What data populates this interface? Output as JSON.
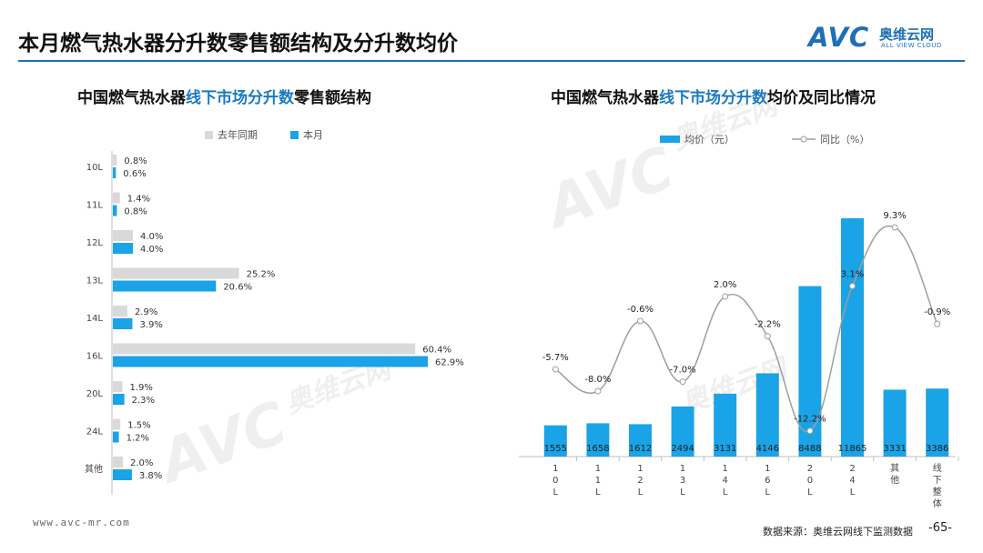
{
  "header": {
    "title": "本月燃气热水器分升数零售额结构及分升数均价",
    "logo_mark": "AVC",
    "logo_cn": "奥维云网",
    "logo_en": "ALL VIEW CLOUD"
  },
  "colors": {
    "accent": "#1f6fb5",
    "bar_current": "#1aa3e6",
    "bar_last": "#d9d9d9",
    "line": "#9e9e9e"
  },
  "watermark": {
    "mark": "AVC",
    "cn": "奥维云网",
    "en": "ALL VIEW CLOUD"
  },
  "left_chart_title": {
    "prefix": "中国燃气热水器",
    "highlight": "线下市场分升数",
    "suffix": "零售额结构"
  },
  "right_chart_title": {
    "prefix": "中国燃气热水器",
    "highlight": "线下市场分升数",
    "suffix": "均价及同比情况"
  },
  "chart_data": [
    {
      "type": "bar",
      "orientation": "horizontal",
      "categories": [
        "10L",
        "11L",
        "12L",
        "13L",
        "14L",
        "16L",
        "20L",
        "24L",
        "其他"
      ],
      "series": [
        {
          "name": "去年同期",
          "values": [
            0.8,
            1.4,
            4.0,
            25.2,
            2.9,
            60.4,
            1.9,
            1.5,
            2.0
          ],
          "labels": [
            "0.8%",
            "1.4%",
            "4.0%",
            "25.2%",
            "2.9%",
            "60.4%",
            "1.9%",
            "1.5%",
            "2.0%"
          ]
        },
        {
          "name": "本月",
          "values": [
            0.6,
            0.8,
            4.0,
            20.6,
            3.9,
            62.9,
            2.3,
            1.2,
            3.8
          ],
          "labels": [
            "0.6%",
            "0.8%",
            "4.0%",
            "20.6%",
            "3.9%",
            "62.9%",
            "2.3%",
            "1.2%",
            "3.8%"
          ]
        }
      ],
      "xlim": [
        0,
        65
      ],
      "legend": "top"
    },
    {
      "type": "bar+line",
      "categories": [
        "10L",
        "11L",
        "12L",
        "13L",
        "14L",
        "16L",
        "20L",
        "24L",
        "其他",
        "线下整体"
      ],
      "bar_series": {
        "name": "均价（元）",
        "values": [
          1555,
          1658,
          1612,
          2494,
          3131,
          4146,
          8488,
          11865,
          3331,
          3386
        ]
      },
      "line_series": {
        "name": "同比（%）",
        "values": [
          -5.7,
          -8.0,
          -0.6,
          -7.0,
          2.0,
          -2.2,
          -12.2,
          3.1,
          9.3,
          -0.9
        ],
        "labels": [
          "-5.7%",
          "-8.0%",
          "-0.6%",
          "-7.0%",
          "2.0%",
          "-2.2%",
          "-12.2%",
          "3.1%",
          "9.3%",
          "-0.9%"
        ]
      },
      "bar_ylim": [
        0,
        13000
      ],
      "line_ylim": [
        -13,
        10
      ],
      "legend": "top"
    }
  ],
  "footer": {
    "url": "www.avc-mr.com",
    "source": "数据来源：奥维云网线下监测数据",
    "page": "-65-"
  }
}
